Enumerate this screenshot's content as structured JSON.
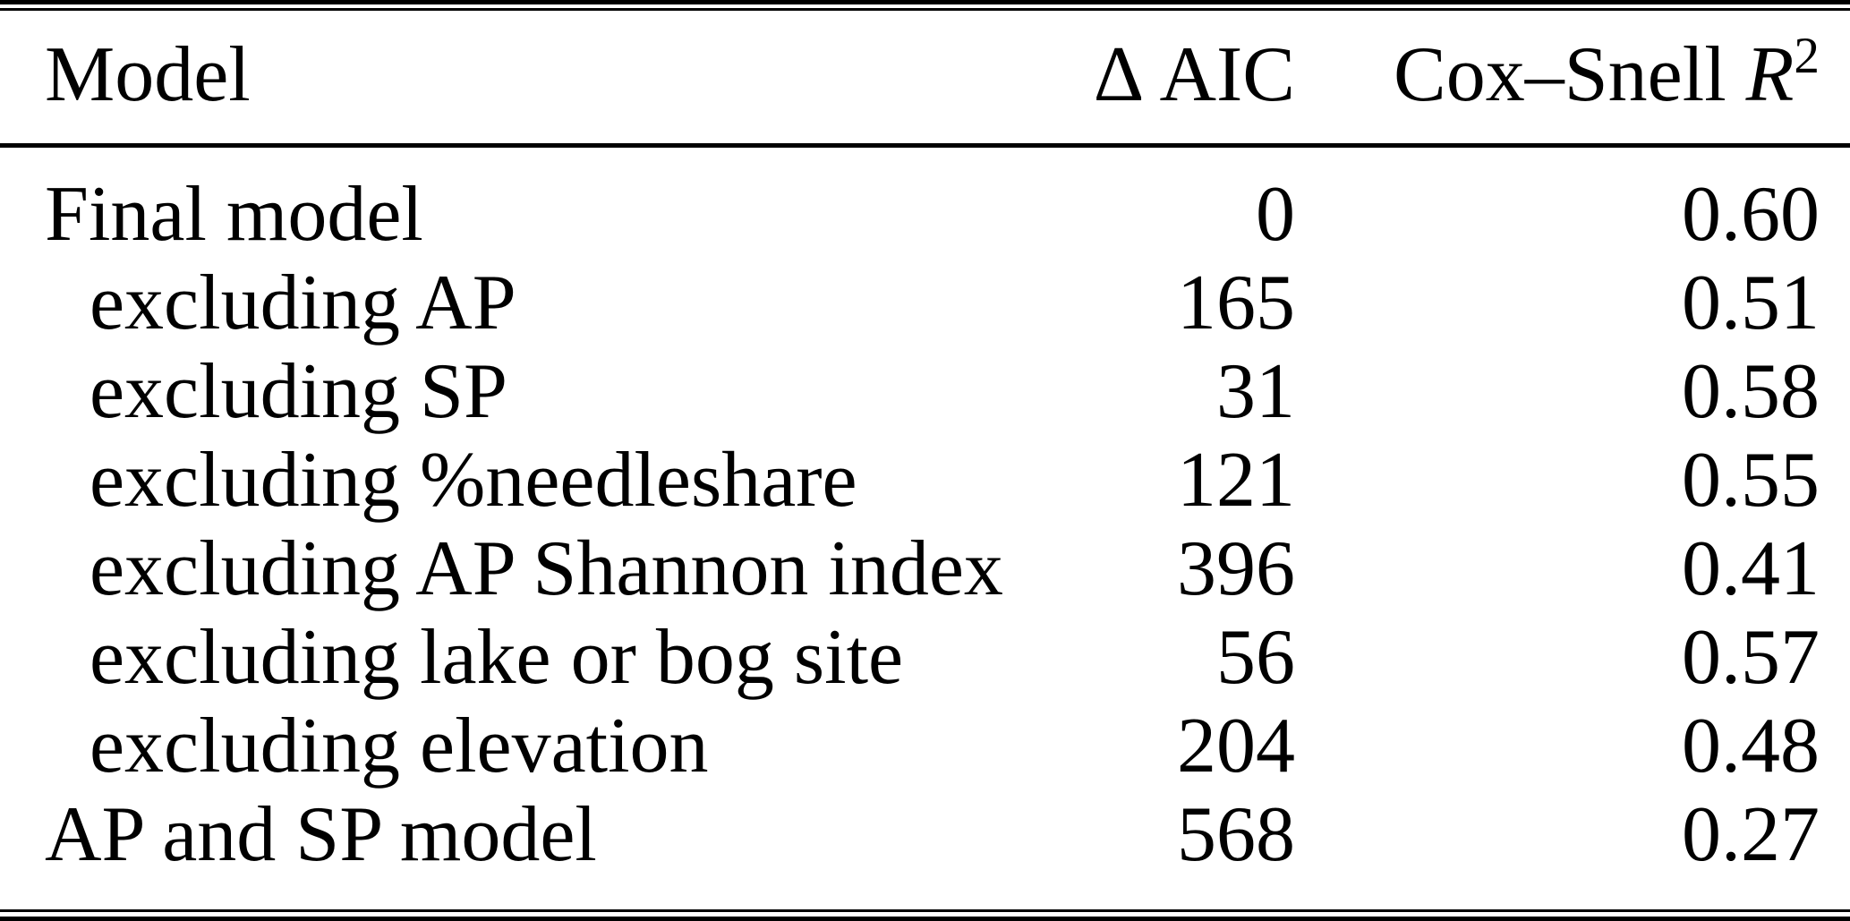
{
  "table": {
    "header": {
      "model": "Model",
      "delta_aic": "Δ AIC",
      "cox_snell": {
        "prefix": "Cox–Snell ",
        "symbol": "R",
        "sup": "2"
      }
    },
    "rows": [
      {
        "label": "Final model",
        "indent": false,
        "delta_aic": "0",
        "cox_snell_r2": "0.60"
      },
      {
        "label": "excluding AP",
        "indent": true,
        "delta_aic": "165",
        "cox_snell_r2": "0.51"
      },
      {
        "label": "excluding SP",
        "indent": true,
        "delta_aic": "31",
        "cox_snell_r2": "0.58"
      },
      {
        "label": "excluding %needleshare",
        "indent": true,
        "delta_aic": "121",
        "cox_snell_r2": "0.55"
      },
      {
        "label": "excluding AP Shannon index",
        "indent": true,
        "delta_aic": "396",
        "cox_snell_r2": "0.41"
      },
      {
        "label": "excluding lake or bog site",
        "indent": true,
        "delta_aic": "56",
        "cox_snell_r2": "0.57"
      },
      {
        "label": "excluding elevation",
        "indent": true,
        "delta_aic": "204",
        "cox_snell_r2": "0.48"
      },
      {
        "label": "AP and SP model",
        "indent": false,
        "delta_aic": "568",
        "cox_snell_r2": "0.27"
      }
    ],
    "colors": {
      "text": "#000000",
      "background": "#ffffff",
      "rule": "#000000"
    }
  },
  "chart_data": {
    "type": "table",
    "title": "",
    "columns": [
      "Model",
      "Δ AIC",
      "Cox–Snell R²"
    ],
    "rows": [
      [
        "Final model",
        0,
        0.6
      ],
      [
        "excluding AP",
        165,
        0.51
      ],
      [
        "excluding SP",
        31,
        0.58
      ],
      [
        "excluding %needleshare",
        121,
        0.55
      ],
      [
        "excluding AP Shannon index",
        396,
        0.41
      ],
      [
        "excluding lake or bog site",
        56,
        0.57
      ],
      [
        "excluding elevation",
        204,
        0.48
      ],
      [
        "AP and SP model",
        568,
        0.27
      ]
    ]
  }
}
